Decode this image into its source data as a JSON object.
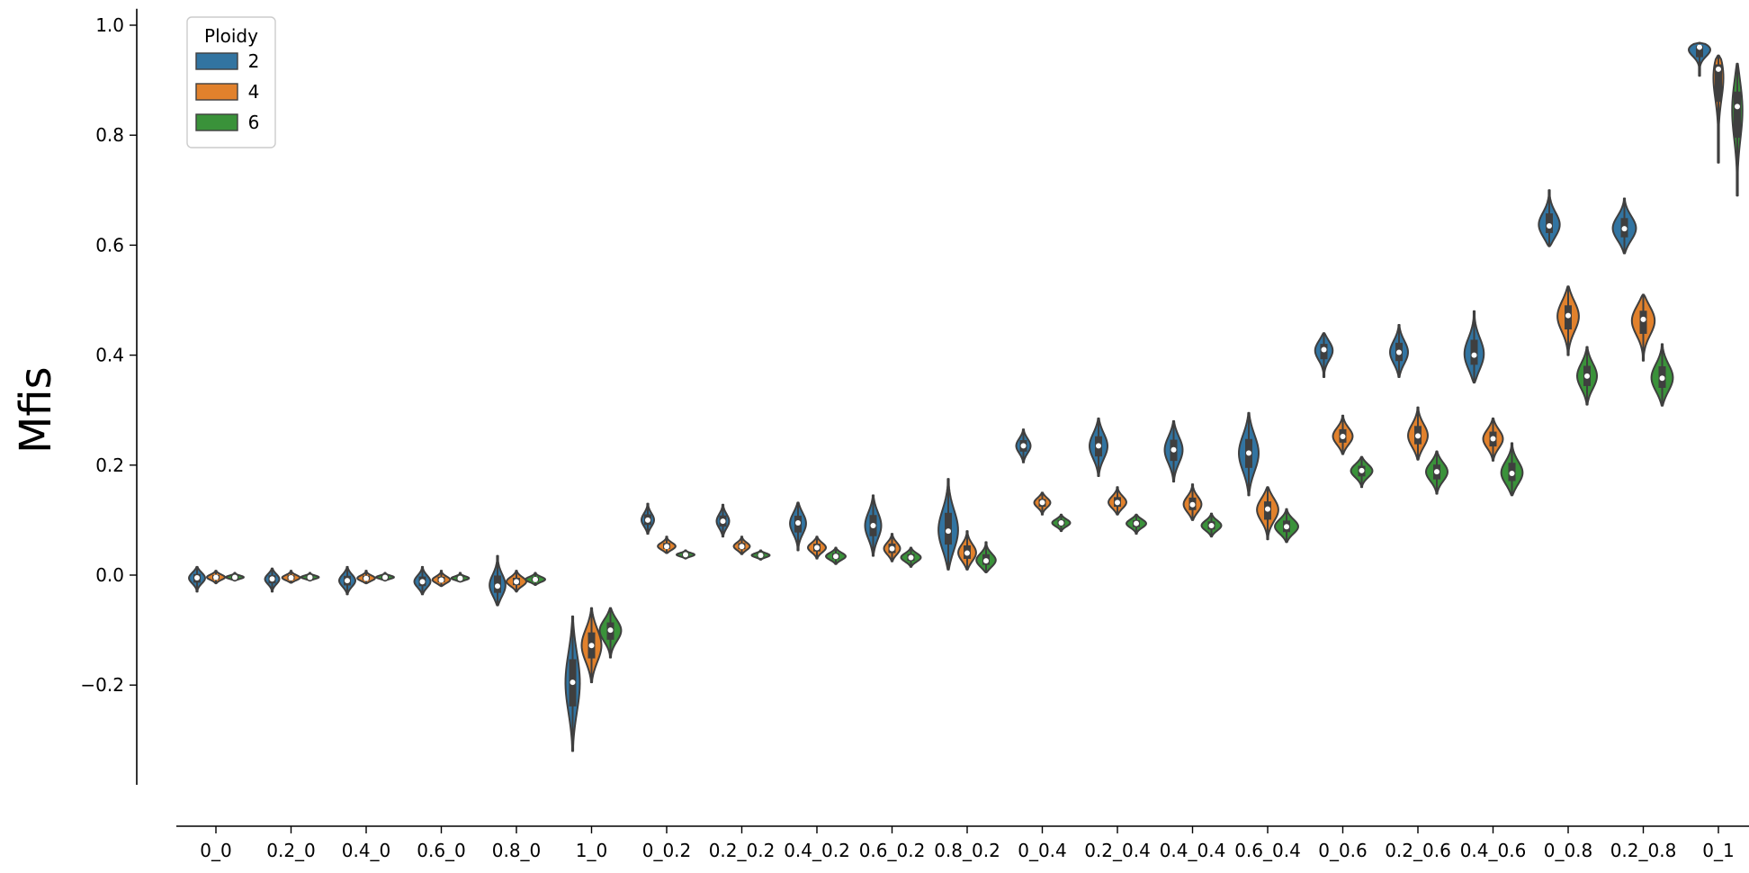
{
  "chart_data": {
    "type": "violin",
    "ylabel": "Mfis",
    "ylim": [
      -0.38,
      1.02
    ],
    "yticks": [
      {
        "value": 1.0,
        "label": "1.0"
      },
      {
        "value": 0.8,
        "label": "0.8"
      },
      {
        "value": 0.6,
        "label": "0.6"
      },
      {
        "value": 0.4,
        "label": "0.4"
      },
      {
        "value": 0.2,
        "label": "0.2"
      },
      {
        "value": 0.0,
        "label": "0.0"
      },
      {
        "value": -0.2,
        "label": "−0.2"
      }
    ],
    "categories": [
      "0_0",
      "0.2_0",
      "0.4_0",
      "0.6_0",
      "0.8_0",
      "1_0",
      "0_0.2",
      "0.2_0.2",
      "0.4_0.2",
      "0.6_0.2",
      "0.8_0.2",
      "0_0.4",
      "0.2_0.4",
      "0.4_0.4",
      "0.6_0.4",
      "0_0.6",
      "0.2_0.6",
      "0.4_0.6",
      "0_0.8",
      "0.2_0.8",
      "0_1"
    ],
    "legend": {
      "title": "Ploidy",
      "placement": "top-left",
      "entries": [
        {
          "label": "2",
          "color": "#3274a1"
        },
        {
          "label": "4",
          "color": "#e1812c"
        },
        {
          "label": "6",
          "color": "#3a923a"
        }
      ]
    },
    "series": [
      {
        "ploidy": "2",
        "color": "#3274a1",
        "median": [
          -0.005,
          -0.007,
          -0.01,
          -0.012,
          -0.02,
          -0.195,
          0.1,
          0.098,
          0.095,
          0.09,
          0.08,
          0.235,
          0.235,
          0.228,
          0.222,
          0.41,
          0.405,
          0.4,
          0.635,
          0.63,
          0.96
        ],
        "min": [
          -0.03,
          -0.03,
          -0.035,
          -0.035,
          -0.055,
          -0.32,
          0.075,
          0.07,
          0.045,
          0.035,
          0.01,
          0.205,
          0.18,
          0.17,
          0.145,
          0.36,
          0.36,
          0.35,
          0.598,
          0.585,
          0.908
        ],
        "max": [
          0.015,
          0.012,
          0.015,
          0.015,
          0.035,
          -0.075,
          0.13,
          0.128,
          0.132,
          0.145,
          0.175,
          0.265,
          0.285,
          0.28,
          0.295,
          0.44,
          0.455,
          0.48,
          0.7,
          0.685,
          0.968
        ],
        "halfwidth": [
          9,
          8,
          9,
          9,
          9,
          8,
          7,
          7,
          9,
          9,
          11,
          8,
          10,
          10,
          11,
          10,
          10,
          11,
          12,
          13,
          15
        ]
      },
      {
        "ploidy": "4",
        "color": "#e1812c",
        "median": [
          -0.004,
          -0.005,
          -0.006,
          -0.009,
          -0.012,
          -0.128,
          0.052,
          0.052,
          0.05,
          0.048,
          0.04,
          0.132,
          0.132,
          0.128,
          0.12,
          0.252,
          0.253,
          0.248,
          0.472,
          0.465,
          0.92
        ],
        "min": [
          -0.015,
          -0.014,
          -0.015,
          -0.02,
          -0.03,
          -0.195,
          0.04,
          0.038,
          0.03,
          0.025,
          0.01,
          0.11,
          0.11,
          0.1,
          0.065,
          0.22,
          0.21,
          0.208,
          0.4,
          0.39,
          0.75
        ],
        "max": [
          0.008,
          0.008,
          0.008,
          0.008,
          0.008,
          -0.06,
          0.07,
          0.07,
          0.07,
          0.075,
          0.08,
          0.15,
          0.16,
          0.165,
          0.16,
          0.29,
          0.305,
          0.285,
          0.525,
          0.51,
          0.945
        ],
        "halfwidth": [
          10,
          10,
          10,
          10,
          11,
          11,
          10,
          9,
          10,
          9,
          10,
          9,
          10,
          10,
          12,
          11,
          11,
          11,
          12,
          13,
          7
        ]
      },
      {
        "ploidy": "6",
        "color": "#3a923a",
        "median": [
          -0.004,
          -0.004,
          -0.004,
          -0.006,
          -0.008,
          -0.1,
          0.037,
          0.036,
          0.034,
          0.032,
          0.026,
          0.095,
          0.094,
          0.09,
          0.088,
          0.19,
          0.188,
          0.185,
          0.362,
          0.358,
          0.852
        ],
        "min": [
          -0.01,
          -0.01,
          -0.01,
          -0.012,
          -0.018,
          -0.15,
          0.03,
          0.028,
          0.02,
          0.015,
          0.005,
          0.08,
          0.075,
          0.07,
          0.06,
          0.16,
          0.148,
          0.145,
          0.31,
          0.308,
          0.69
        ],
        "max": [
          0.004,
          0.004,
          0.004,
          0.004,
          0.004,
          -0.06,
          0.045,
          0.045,
          0.05,
          0.05,
          0.06,
          0.11,
          0.11,
          0.112,
          0.12,
          0.215,
          0.225,
          0.24,
          0.415,
          0.42,
          0.93
        ],
        "halfwidth": [
          10,
          10,
          10,
          10,
          11,
          12,
          10,
          10,
          11,
          11,
          11,
          10,
          11,
          11,
          13,
          12,
          12,
          12,
          11,
          12,
          6
        ]
      }
    ]
  }
}
